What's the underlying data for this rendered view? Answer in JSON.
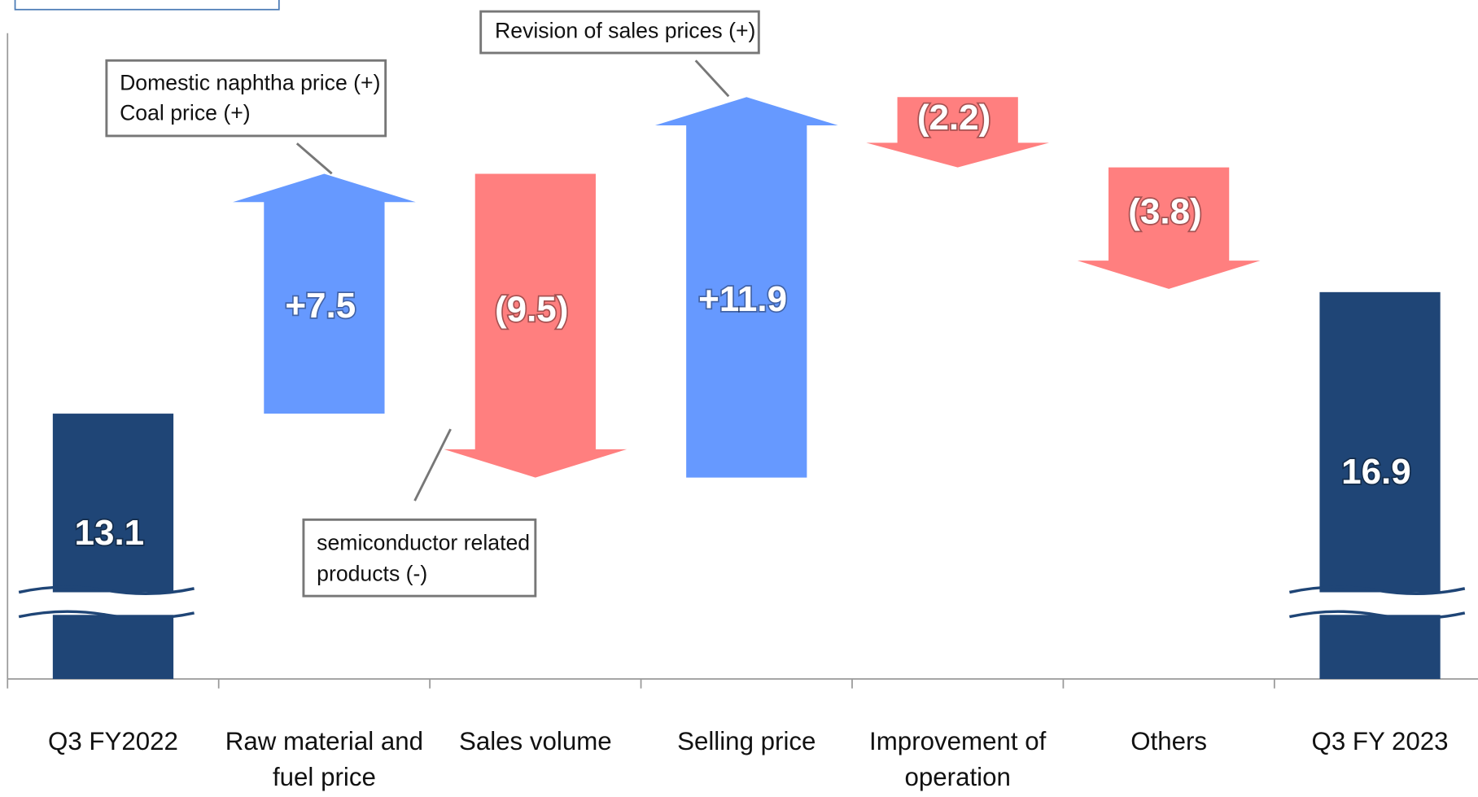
{
  "chart_data": {
    "type": "waterfall-arrows",
    "categories": [
      "Q3 FY2022",
      "Raw material and fuel price",
      "Sales volume",
      "Selling price",
      "Improvement of operation",
      "Others",
      "Q3 FY 2023"
    ],
    "values": [
      13.1,
      7.5,
      -9.5,
      11.9,
      -2.2,
      -3.8,
      16.9
    ],
    "value_labels": [
      "13.1",
      "+7.5",
      "(9.5)",
      "+11.9",
      "(2.2)",
      "(3.8)",
      "16.9"
    ],
    "ylim": [
      4.8,
      25
    ],
    "colors": {
      "total": "#1f4576",
      "increase": "#6699ff",
      "decrease": "#ff7f7f"
    },
    "annotations": [
      [
        "Domestic naphtha price (+)",
        "Coal price (+)"
      ],
      [
        "semiconductor related",
        " products (-)"
      ],
      [
        "Revision of sales prices (+)"
      ]
    ]
  }
}
